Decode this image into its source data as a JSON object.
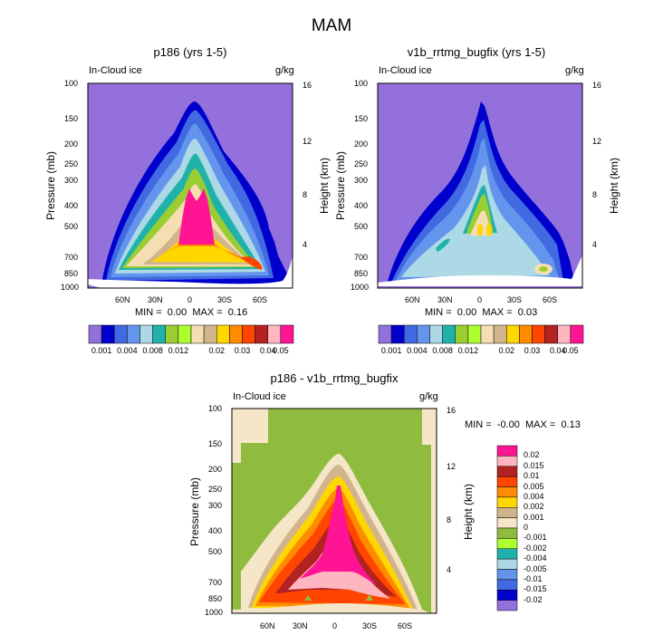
{
  "figure_title": "MAM",
  "chart_data": [
    {
      "type": "heatmap",
      "title": "p186 (yrs 1-5)",
      "field_label": "In-Cloud ice",
      "units": "g/kg",
      "ylabel": "Pressure (mb)",
      "y2label": "Height (km)",
      "yticks": [
        "100",
        "150",
        "200",
        "250",
        "300",
        "400",
        "500",
        "700",
        "850",
        "1000"
      ],
      "y2ticks": [
        "16",
        "12",
        "8",
        "4"
      ],
      "xticks": [
        "60N",
        "30N",
        "0",
        "30S",
        "60S"
      ],
      "stats": {
        "min_label": "MIN =",
        "min": "0.00",
        "max_label": "MAX =",
        "max": "0.16"
      },
      "peak_value": 0.16
    },
    {
      "type": "heatmap",
      "title": "v1b_rrtmg_bugfix (yrs 1-5)",
      "field_label": "In-Cloud ice",
      "units": "g/kg",
      "ylabel": "Pressure (mb)",
      "y2label": "Height (km)",
      "yticks": [
        "100",
        "150",
        "200",
        "250",
        "300",
        "400",
        "500",
        "700",
        "850",
        "1000"
      ],
      "y2ticks": [
        "16",
        "12",
        "8",
        "4"
      ],
      "xticks": [
        "60N",
        "30N",
        "0",
        "30S",
        "60S"
      ],
      "stats": {
        "min_label": "MIN =",
        "min": "0.00",
        "max_label": "MAX =",
        "max": "0.03"
      },
      "peak_value": 0.03
    },
    {
      "type": "heatmap",
      "title": "p186 - v1b_rrtmg_bugfix",
      "field_label": "In-Cloud ice",
      "units": "g/kg",
      "ylabel": "Pressure (mb)",
      "y2label": "Height (km)",
      "yticks": [
        "100",
        "150",
        "200",
        "250",
        "300",
        "400",
        "500",
        "700",
        "850",
        "1000"
      ],
      "y2ticks": [
        "16",
        "12",
        "8",
        "4"
      ],
      "xticks": [
        "60N",
        "30N",
        "0",
        "30S",
        "60S"
      ],
      "stats": {
        "min_label": "MIN =",
        "min": "-0.00",
        "max_label": "MAX =",
        "max": "0.13"
      },
      "peak_value": 0.13
    }
  ],
  "colorbar_top": {
    "labels": [
      "0.001",
      "0.004",
      "0.008",
      "0.012",
      "0.02",
      "0.03",
      "0.04",
      "0.05"
    ],
    "colors": [
      "#9370db",
      "#0000cd",
      "#4169e1",
      "#6495ed",
      "#add8e6",
      "#20b2aa",
      "#9acd32",
      "#adff2f",
      "#f5deb3",
      "#d2b48c",
      "#ffd700",
      "#ff8c00",
      "#ff4500",
      "#b22222",
      "#ffb6c1",
      "#ff1493"
    ]
  },
  "colorbar_diff": {
    "labels": [
      "0.02",
      "0.015",
      "0.01",
      "0.005",
      "0.004",
      "0.002",
      "0.001",
      "0",
      "-0.001",
      "-0.002",
      "-0.004",
      "-0.005",
      "-0.01",
      "-0.015",
      "-0.02"
    ],
    "colors": [
      "#ff1493",
      "#ffb6c1",
      "#b22222",
      "#ff4500",
      "#ff8c00",
      "#ffd700",
      "#d2b48c",
      "#f5e6c8",
      "#8fbc3f",
      "#adff2f",
      "#20b2aa",
      "#add8e6",
      "#6495ed",
      "#4169e1",
      "#0000cd",
      "#9370db"
    ]
  }
}
